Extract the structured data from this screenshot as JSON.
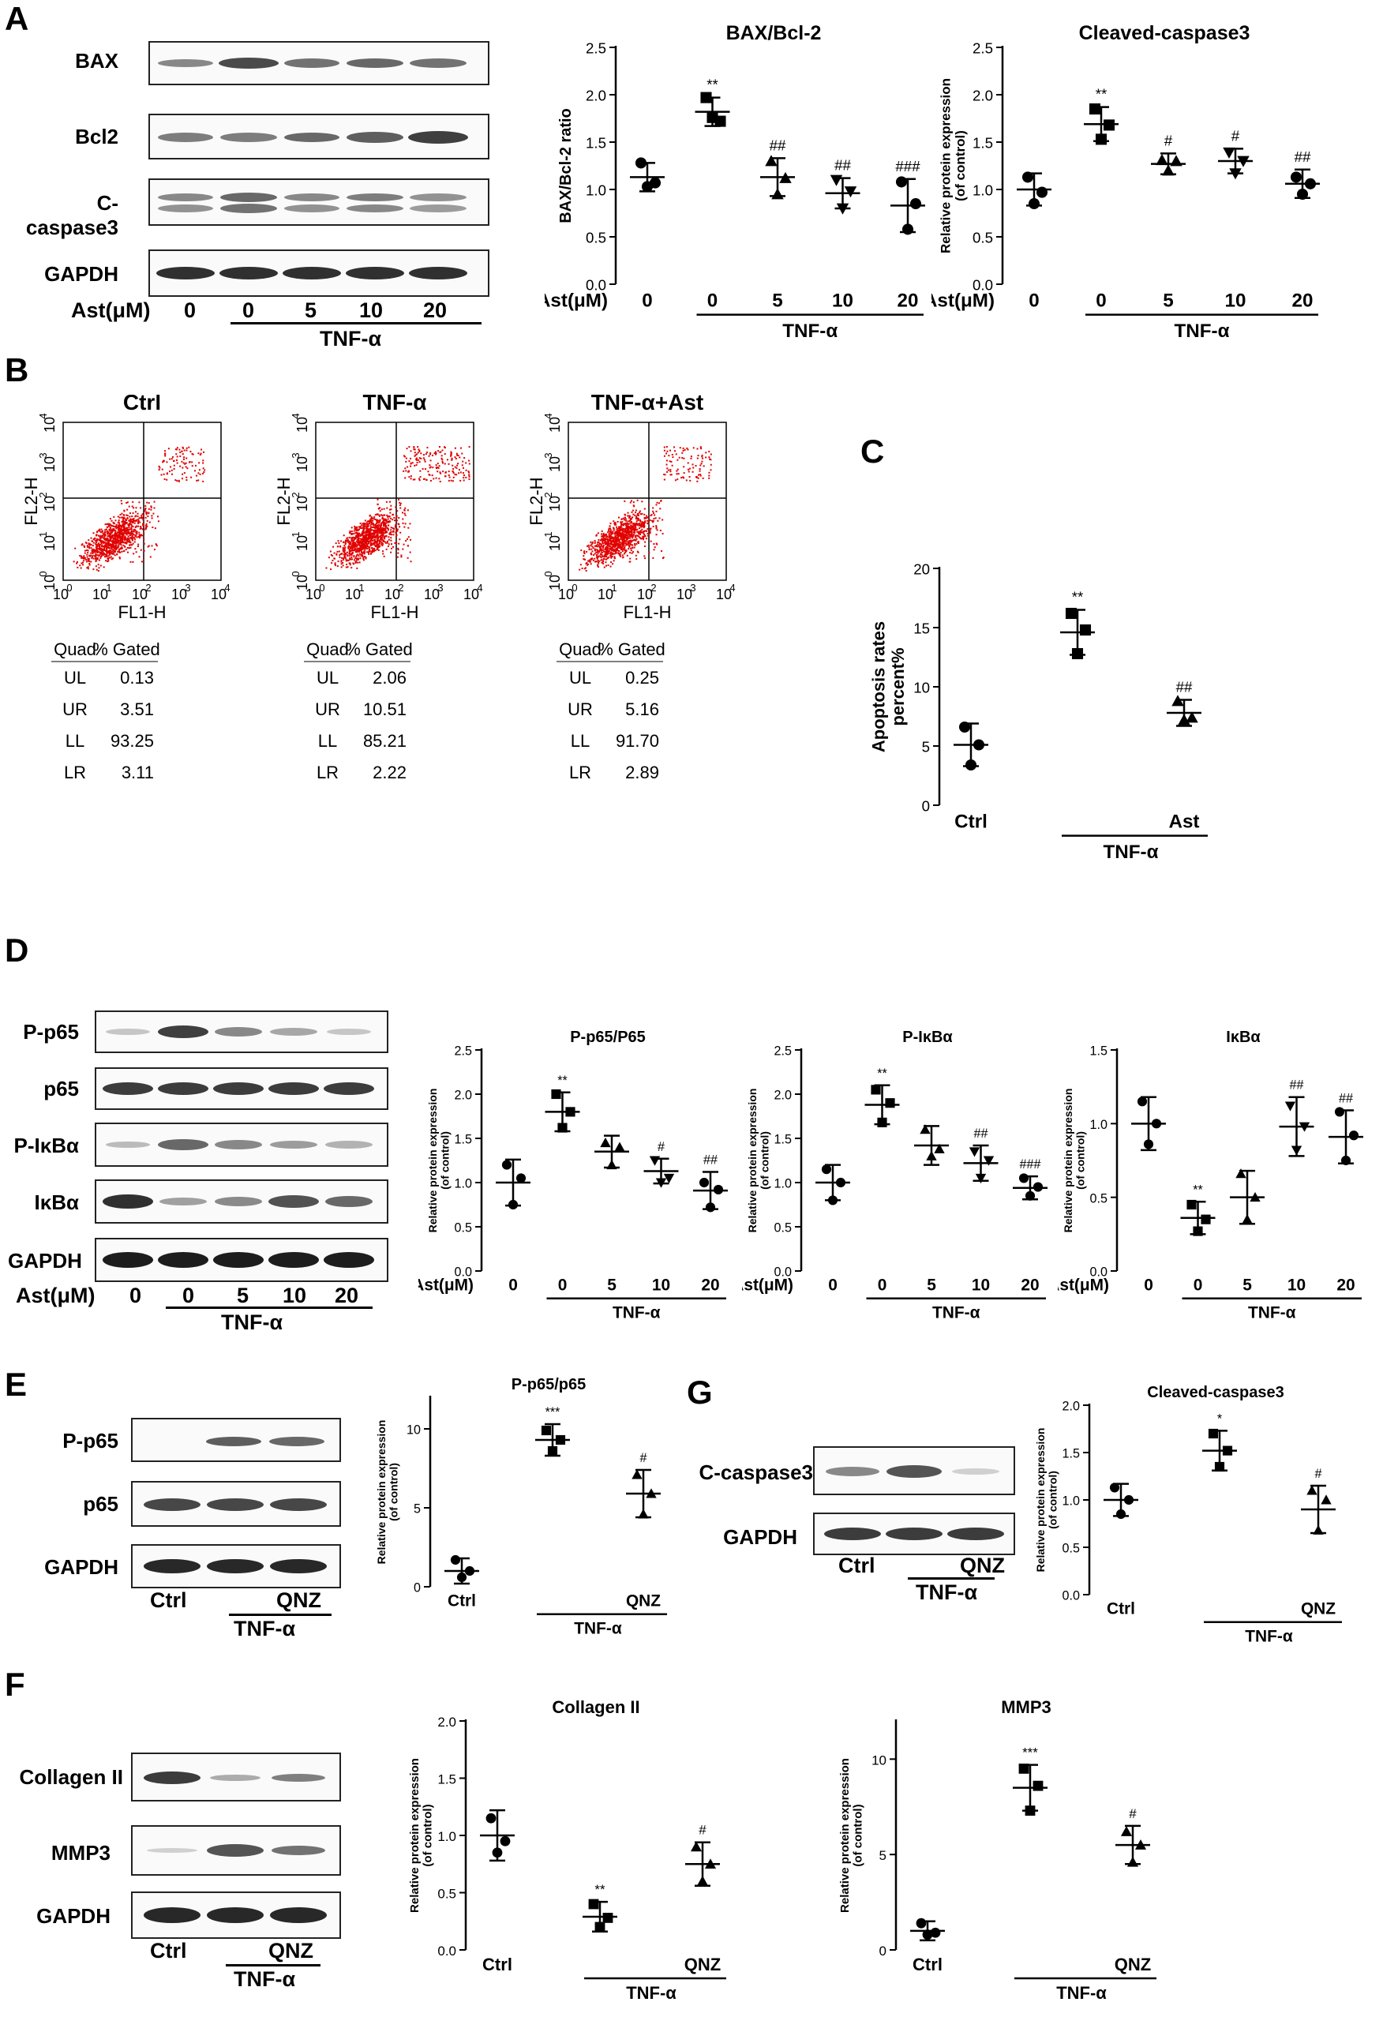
{
  "panel_letters": {
    "A": "A",
    "B": "B",
    "C": "C",
    "D": "D",
    "E": "E",
    "F": "F",
    "G": "G"
  },
  "common": {
    "ast_label": "Ast(μM)",
    "tnf_label": "TNF-α",
    "doses": [
      "0",
      "0",
      "5",
      "10",
      "20"
    ],
    "ctrl": "Ctrl",
    "qnz": "QNZ",
    "ast": "Ast"
  },
  "blots": {
    "A": [
      "BAX",
      "Bcl2",
      "C-caspase3",
      "GAPDH"
    ],
    "D": [
      "P-p65",
      "p65",
      "P-IκBα",
      "IκBα",
      "GAPDH"
    ],
    "E": [
      "P-p65",
      "p65",
      "GAPDH"
    ],
    "F": [
      "Collagen II",
      "MMP3",
      "GAPDH"
    ],
    "G": [
      "C-caspase3",
      "GAPDH"
    ]
  },
  "facs": {
    "xlabel": "FL1-H",
    "ylabel": "FL2-H",
    "ticks": [
      "10^0",
      "10^1",
      "10^2",
      "10^3",
      "10^4"
    ],
    "table_headers": [
      "Quad",
      "% Gated"
    ],
    "quads": [
      "UL",
      "UR",
      "LL",
      "LR"
    ],
    "plots": [
      {
        "title": "Ctrl",
        "values": [
          "0.13",
          "3.51",
          "93.25",
          "3.11"
        ]
      },
      {
        "title": "TNF-α",
        "values": [
          "2.06",
          "10.51",
          "85.21",
          "2.22"
        ]
      },
      {
        "title": "TNF-α+Ast",
        "values": [
          "0.25",
          "5.16",
          "91.70",
          "2.89"
        ]
      }
    ]
  },
  "chart_data": [
    {
      "id": "A1",
      "type": "scatter",
      "title": "BAX/Bcl-2",
      "ylabel": "BAX/Bcl-2 ratio",
      "ylim": [
        0,
        2.5
      ],
      "yticks": [
        "0.0",
        "0.5",
        "1.0",
        "1.5",
        "2.0",
        "2.5"
      ],
      "categories": [
        "0",
        "0",
        "5",
        "10",
        "20"
      ],
      "means": [
        1.13,
        1.82,
        1.13,
        0.96,
        0.83
      ],
      "sd": [
        0.15,
        0.15,
        0.2,
        0.16,
        0.28
      ],
      "points": [
        [
          1.28,
          1.07,
          1.03
        ],
        [
          1.97,
          1.72,
          1.76
        ],
        [
          1.3,
          1.12,
          0.95
        ],
        [
          1.1,
          0.98,
          0.8
        ],
        [
          1.08,
          0.85,
          0.58
        ]
      ],
      "sig": [
        "",
        "**",
        "##",
        "##",
        "###"
      ]
    },
    {
      "id": "A2",
      "type": "scatter",
      "title": "Cleaved-caspase3",
      "ylabel": "Relative protein expression\n(of control)",
      "ylim": [
        0,
        2.5
      ],
      "yticks": [
        "0.0",
        "0.5",
        "1.0",
        "1.5",
        "2.0",
        "2.5"
      ],
      "categories": [
        "0",
        "0",
        "5",
        "10",
        "20"
      ],
      "means": [
        1.0,
        1.69,
        1.27,
        1.3,
        1.06
      ],
      "sd": [
        0.17,
        0.18,
        0.11,
        0.13,
        0.15
      ],
      "points": [
        [
          1.13,
          0.97,
          0.85
        ],
        [
          1.85,
          1.68,
          1.53
        ],
        [
          1.31,
          1.3,
          1.2
        ],
        [
          1.39,
          1.3,
          1.17
        ],
        [
          1.13,
          1.06,
          0.95
        ]
      ],
      "sig": [
        "",
        "**",
        "#",
        "#",
        "##"
      ]
    },
    {
      "id": "C",
      "type": "scatter",
      "title": "",
      "ylabel": "Apoptosis rates\npercent%",
      "ylim": [
        0,
        20
      ],
      "yticks": [
        "0",
        "5",
        "10",
        "15",
        "20"
      ],
      "categories": [
        "Ctrl",
        "",
        "Ast"
      ],
      "means": [
        5.1,
        14.6,
        7.8
      ],
      "sd": [
        1.8,
        1.9,
        1.1
      ],
      "points": [
        [
          6.6,
          5.1,
          3.4
        ],
        [
          16.2,
          14.8,
          12.8
        ],
        [
          8.8,
          7.4,
          7.2
        ]
      ],
      "sig": [
        "",
        "**",
        "##"
      ]
    },
    {
      "id": "D1",
      "type": "scatter",
      "title": "P-p65/P65",
      "ylabel": "Relative protein expression\n(of control)",
      "ylim": [
        0,
        2.5
      ],
      "yticks": [
        "0.0",
        "0.5",
        "1.0",
        "1.5",
        "2.0",
        "2.5"
      ],
      "categories": [
        "0",
        "0",
        "5",
        "10",
        "20"
      ],
      "means": [
        1.0,
        1.8,
        1.35,
        1.13,
        0.91
      ],
      "sd": [
        0.26,
        0.22,
        0.18,
        0.14,
        0.21
      ],
      "points": [
        [
          1.2,
          1.05,
          0.75
        ],
        [
          2.0,
          1.8,
          1.62
        ],
        [
          1.45,
          1.4,
          1.2
        ],
        [
          1.25,
          1.05,
          1.0
        ],
        [
          1.0,
          0.92,
          0.72
        ]
      ],
      "sig": [
        "",
        "**",
        "",
        "#",
        "##"
      ]
    },
    {
      "id": "D2",
      "type": "scatter",
      "title": "P-IκBα",
      "ylabel": "Relative protein expression\n(of control)",
      "ylim": [
        0,
        2.5
      ],
      "yticks": [
        "0.0",
        "0.5",
        "1.0",
        "1.5",
        "2.0",
        "2.5"
      ],
      "categories": [
        "0",
        "0",
        "5",
        "10",
        "20"
      ],
      "means": [
        1.0,
        1.88,
        1.42,
        1.22,
        0.94
      ],
      "sd": [
        0.2,
        0.22,
        0.22,
        0.2,
        0.13
      ],
      "points": [
        [
          1.15,
          1.0,
          0.8
        ],
        [
          2.05,
          1.9,
          1.68
        ],
        [
          1.6,
          1.38,
          1.3
        ],
        [
          1.35,
          1.25,
          1.05
        ],
        [
          1.05,
          0.95,
          0.85
        ]
      ],
      "sig": [
        "",
        "**",
        "",
        "##",
        "###"
      ]
    },
    {
      "id": "D3",
      "type": "scatter",
      "title": "IκBα",
      "ylabel": "Relative protein expression\n(of control)",
      "ylim": [
        0,
        1.5
      ],
      "yticks": [
        "0.0",
        "0.5",
        "1.0",
        "1.5"
      ],
      "categories": [
        "0",
        "0",
        "5",
        "10",
        "20"
      ],
      "means": [
        1.0,
        0.36,
        0.5,
        0.98,
        0.91
      ],
      "sd": [
        0.18,
        0.11,
        0.18,
        0.2,
        0.18
      ],
      "points": [
        [
          1.15,
          1.0,
          0.86
        ],
        [
          0.45,
          0.35,
          0.27
        ],
        [
          0.66,
          0.5,
          0.35
        ],
        [
          1.12,
          0.98,
          0.82
        ],
        [
          1.08,
          0.92,
          0.75
        ]
      ],
      "sig": [
        "",
        "**",
        "",
        "##",
        "##"
      ]
    },
    {
      "id": "E",
      "type": "scatter",
      "title": "P-p65/p65",
      "ylabel": "Relative protein expression\n(of control)",
      "ylim": [
        0,
        12
      ],
      "yticks": [
        "0",
        "5",
        "10"
      ],
      "categories": [
        "Ctrl",
        "",
        "QNZ"
      ],
      "means": [
        1.0,
        9.3,
        5.9
      ],
      "sd": [
        0.8,
        1.0,
        1.5
      ],
      "points": [
        [
          1.7,
          1.0,
          0.6
        ],
        [
          9.9,
          9.3,
          8.6
        ],
        [
          7.1,
          5.9,
          4.6
        ]
      ],
      "sig": [
        "",
        "***",
        "#"
      ]
    },
    {
      "id": "G",
      "type": "scatter",
      "title": "Cleaved-caspase3",
      "ylabel": "Relative protein expression\n(of control)",
      "ylim": [
        0,
        2.0
      ],
      "yticks": [
        "0.0",
        "0.5",
        "1.0",
        "1.5",
        "2.0"
      ],
      "categories": [
        "Ctrl",
        "",
        "QNZ"
      ],
      "means": [
        1.0,
        1.52,
        0.9
      ],
      "sd": [
        0.17,
        0.21,
        0.25
      ],
      "points": [
        [
          1.13,
          1.0,
          0.85
        ],
        [
          1.7,
          1.52,
          1.35
        ],
        [
          1.1,
          1.0,
          0.68
        ]
      ],
      "sig": [
        "",
        "*",
        "#"
      ]
    },
    {
      "id": "F1",
      "type": "scatter",
      "title": "Collagen II",
      "ylabel": "Relative protein expression\n(of control)",
      "ylim": [
        0,
        2.0
      ],
      "yticks": [
        "0.0",
        "0.5",
        "1.0",
        "1.5",
        "2.0"
      ],
      "categories": [
        "Ctrl",
        "",
        "QNZ"
      ],
      "means": [
        1.0,
        0.29,
        0.75
      ],
      "sd": [
        0.22,
        0.13,
        0.19
      ],
      "points": [
        [
          1.15,
          0.95,
          0.85
        ],
        [
          0.4,
          0.28,
          0.2
        ],
        [
          0.9,
          0.75,
          0.6
        ]
      ],
      "sig": [
        "",
        "**",
        "#"
      ]
    },
    {
      "id": "F2",
      "type": "scatter",
      "title": "MMP3",
      "ylabel": "Relative protein expression\n(of control)",
      "ylim": [
        0,
        12
      ],
      "yticks": [
        "0",
        "5",
        "10"
      ],
      "categories": [
        "Ctrl",
        "",
        "QNZ"
      ],
      "means": [
        1.0,
        8.5,
        5.5
      ],
      "sd": [
        0.5,
        1.2,
        1.0
      ],
      "points": [
        [
          1.4,
          0.9,
          0.8
        ],
        [
          9.5,
          8.6,
          7.3
        ],
        [
          6.2,
          5.5,
          4.6
        ]
      ],
      "sig": [
        "",
        "***",
        "#"
      ]
    }
  ]
}
